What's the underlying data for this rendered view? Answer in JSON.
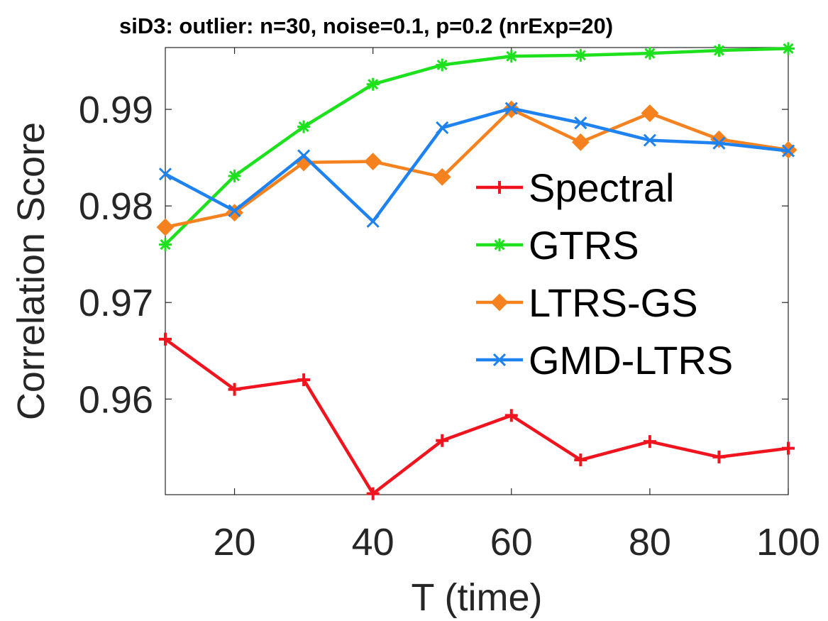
{
  "chart_data": {
    "type": "line",
    "title": "siD3: outlier: n=30, noise=0.1, p=0.2 (nrExp=20)",
    "xlabel": "T (time)",
    "ylabel": "Correlation Score",
    "x": [
      10,
      20,
      30,
      40,
      50,
      60,
      70,
      80,
      90,
      100
    ],
    "xlim": [
      10,
      100
    ],
    "ylim": [
      0.9501,
      0.9964
    ],
    "xticks": [
      20,
      40,
      60,
      80,
      100
    ],
    "xtick_labels": [
      "20",
      "40",
      "60",
      "80",
      "100"
    ],
    "yticks": [
      0.96,
      0.97,
      0.98,
      0.99
    ],
    "ytick_labels": [
      "0.96",
      "0.97",
      "0.98",
      "0.99"
    ],
    "grid": false,
    "legend_position": "right",
    "series": [
      {
        "name": "Spectral",
        "color": "#f0141e",
        "marker": "plus",
        "values": [
          0.9662,
          0.961,
          0.962,
          0.9502,
          0.9557,
          0.9583,
          0.9537,
          0.9556,
          0.954,
          0.9549
        ]
      },
      {
        "name": "GTRS",
        "color": "#1ee11e",
        "marker": "asterisk",
        "values": [
          0.976,
          0.9831,
          0.9882,
          0.9926,
          0.9946,
          0.9955,
          0.9956,
          0.9958,
          0.9961,
          0.9963
        ]
      },
      {
        "name": "LTRS-GS",
        "color": "#f5821e",
        "marker": "diamond",
        "values": [
          0.9778,
          0.9793,
          0.9845,
          0.9846,
          0.983,
          0.99,
          0.9866,
          0.9896,
          0.9869,
          0.9858
        ]
      },
      {
        "name": "GMD-LTRS",
        "color": "#1e82f0",
        "marker": "x",
        "values": [
          0.9833,
          0.9795,
          0.9852,
          0.9784,
          0.9881,
          0.9901,
          0.9886,
          0.9868,
          0.9865,
          0.9857
        ]
      }
    ]
  }
}
